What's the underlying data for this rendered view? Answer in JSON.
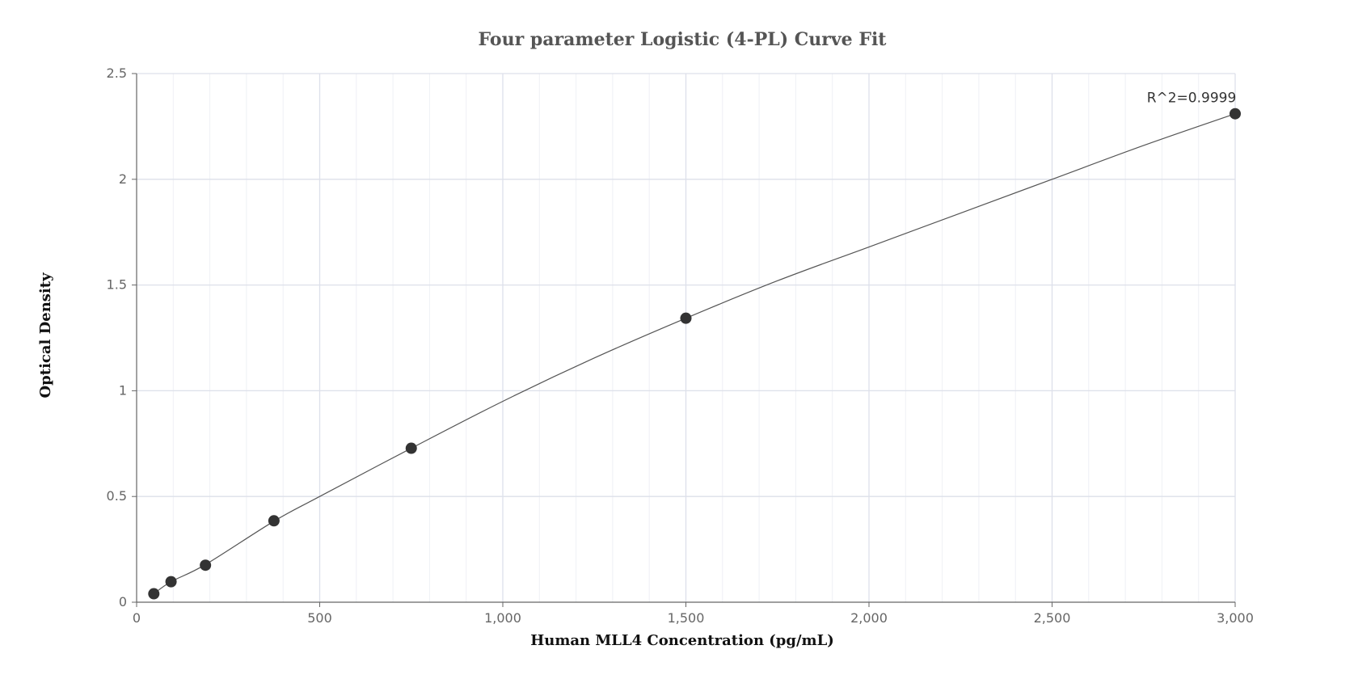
{
  "chart_data": {
    "type": "scatter",
    "title": "Four parameter Logistic (4-PL) Curve Fit",
    "xlabel": "Human MLL4 Concentration (pg/mL)",
    "ylabel": "Optical Density",
    "xlim": [
      0,
      3000
    ],
    "ylim": [
      0,
      2.5
    ],
    "x_ticks": [
      0,
      500,
      1000,
      1500,
      2000,
      2500,
      3000
    ],
    "x_tick_labels": [
      "0",
      "500",
      "1,000",
      "1,500",
      "2,000",
      "2,500",
      "3,000"
    ],
    "y_ticks": [
      0,
      0.5,
      1,
      1.5,
      2,
      2.5
    ],
    "y_tick_labels": [
      "0",
      "0.5",
      "1",
      "1.5",
      "2",
      "2.5"
    ],
    "grid": true,
    "series": [
      {
        "points": [
          {
            "x": 47,
            "y": 0.04
          },
          {
            "x": 94,
            "y": 0.097
          },
          {
            "x": 188,
            "y": 0.175
          },
          {
            "x": 375,
            "y": 0.385
          },
          {
            "x": 750,
            "y": 0.728
          },
          {
            "x": 1500,
            "y": 1.343
          },
          {
            "x": 3000,
            "y": 2.31
          }
        ]
      }
    ],
    "fit_curve": {
      "model": "4-PL",
      "x": [
        47,
        94,
        188,
        375,
        500,
        750,
        1000,
        1250,
        1500,
        1750,
        2000,
        2250,
        2500,
        2750,
        3000
      ],
      "y": [
        0.04,
        0.097,
        0.178,
        0.383,
        0.5,
        0.728,
        0.95,
        1.155,
        1.343,
        1.52,
        1.68,
        1.84,
        2.0,
        2.16,
        2.31
      ]
    },
    "annotations": [
      {
        "text": "R^2=0.9999",
        "x": 3000,
        "y": 2.31
      }
    ],
    "colors": {
      "points": "#333333",
      "curve": "#555555",
      "grid_major": "#dde0ea",
      "grid_minor": "#eef0f5",
      "axis": "#666666"
    }
  }
}
